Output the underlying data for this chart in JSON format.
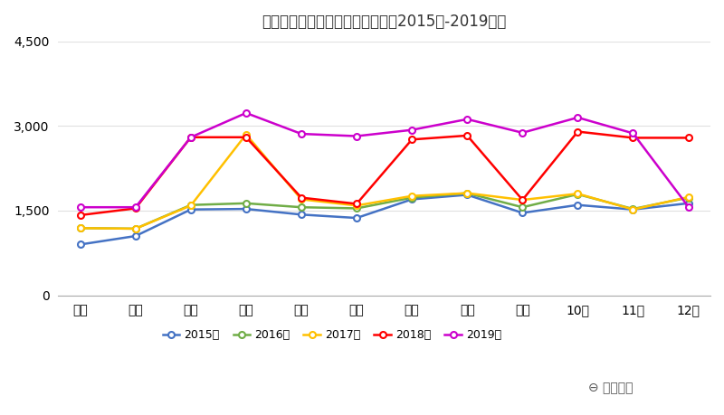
{
  "title": "月別訪日ポルトガル人観光客数（2015年-2019年）",
  "months": [
    "１月",
    "２月",
    "３月",
    "４月",
    "５月",
    "６月",
    "７月",
    "８月",
    "９月",
    "10月",
    "11月",
    "12月"
  ],
  "series": {
    "2015年": [
      900,
      1050,
      1520,
      1530,
      1430,
      1370,
      1700,
      1780,
      1460,
      1600,
      1520,
      1630
    ],
    "2016年": [
      1190,
      1180,
      1600,
      1630,
      1560,
      1540,
      1730,
      1810,
      1560,
      1790,
      1530,
      1730
    ],
    "2017年": [
      1190,
      1180,
      1590,
      2850,
      1700,
      1590,
      1760,
      1810,
      1690,
      1800,
      1520,
      1740
    ],
    "2018年": [
      1420,
      1540,
      2800,
      2800,
      1730,
      1620,
      2760,
      2830,
      1690,
      2900,
      2790,
      2790
    ],
    "2019年": [
      1560,
      1560,
      2800,
      3230,
      2860,
      2820,
      2930,
      3120,
      2880,
      3150,
      2870,
      1570
    ]
  },
  "colors": {
    "2015年": "#4472C4",
    "2016年": "#70AD47",
    "2017年": "#FFC000",
    "2018年": "#FF0000",
    "2019年": "#CC00CC"
  },
  "ylim": [
    0,
    4500
  ],
  "yticks": [
    0,
    1500,
    3000,
    4500
  ],
  "background_color": "#ffffff",
  "watermark_symbol": "⊖",
  "watermark_text": " 訪日ラボ"
}
